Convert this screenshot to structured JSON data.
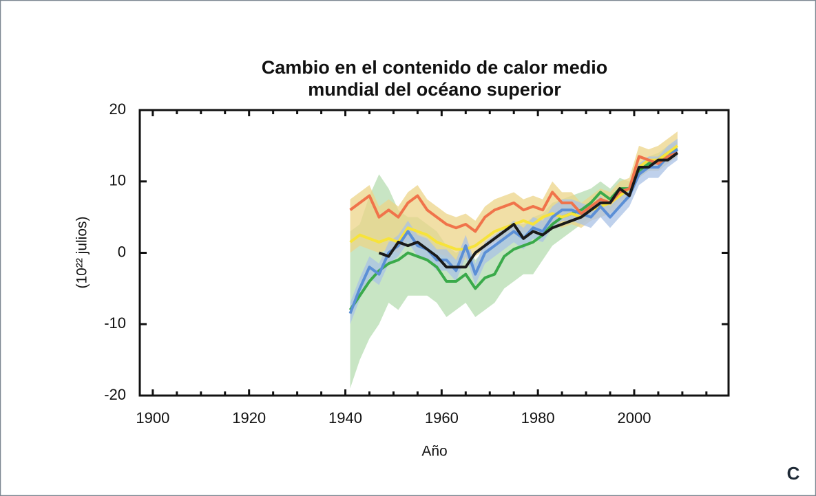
{
  "chart_data": {
    "type": "line",
    "title": [
      "Cambio en el contenido de calor medio",
      "mundial del océano superior"
    ],
    "xlabel": "Año",
    "ylabel": "(10²² julios)",
    "panel_label": "C",
    "xlim": [
      1897.3,
      2019.6
    ],
    "xticks": [
      1900,
      1920,
      1940,
      1960,
      1980,
      2000
    ],
    "xminorticks": [
      1905,
      1910,
      1915,
      1925,
      1930,
      1935,
      1945,
      1950,
      1955,
      1965,
      1970,
      1975,
      1985,
      1990,
      1995,
      2005,
      2010,
      2015
    ],
    "ylim": [
      -20,
      20
    ],
    "yticks": [
      -20,
      -10,
      0,
      10,
      20
    ],
    "x": [
      1941,
      1943,
      1945,
      1947,
      1949,
      1951,
      1953,
      1955,
      1957,
      1959,
      1961,
      1963,
      1965,
      1967,
      1969,
      1971,
      1973,
      1975,
      1977,
      1979,
      1981,
      1983,
      1985,
      1987,
      1989,
      1991,
      1993,
      1995,
      1997,
      1999,
      2001,
      2003,
      2005,
      2007,
      2009
    ],
    "series": [
      {
        "color": "#3aaa4a",
        "band_color": "#b5dcb0",
        "values": [
          -8,
          -6,
          -4,
          -2.5,
          -1.5,
          -1,
          0,
          -0.5,
          -1,
          -2,
          -4,
          -4,
          -3,
          -5,
          -3.5,
          -3,
          -0.5,
          0.5,
          1,
          1.5,
          2.5,
          4,
          5,
          5.5,
          6,
          7,
          8.5,
          7.5,
          9,
          9,
          11.5,
          12.5,
          13,
          14,
          14.5
        ],
        "lower": [
          -19,
          -15,
          -12,
          -10,
          -7,
          -8,
          -6,
          -6,
          -6,
          -7,
          -9,
          -8,
          -7,
          -9,
          -8,
          -7,
          -5,
          -4,
          -3,
          -3,
          -1,
          1,
          2,
          3,
          4,
          5,
          7,
          6,
          7.5,
          8,
          10.5,
          11.5,
          12,
          13,
          13.5
        ],
        "upper": [
          3,
          4,
          8,
          11,
          9,
          6,
          5,
          5,
          4,
          3,
          1,
          0,
          1,
          -1,
          0.5,
          1,
          3,
          4,
          4,
          5,
          5.5,
          7,
          7.5,
          8,
          8.5,
          9,
          10,
          9,
          10.5,
          10,
          12.5,
          13.5,
          14,
          15,
          15.5
        ]
      },
      {
        "color": "#f7e33a",
        "band_color": "#ecd488",
        "values": [
          1.5,
          2.5,
          2,
          1.5,
          2,
          1.5,
          3.5,
          3,
          2.5,
          1.5,
          1,
          0.5,
          0.5,
          1,
          2,
          3,
          3.5,
          4,
          4.5,
          4,
          5,
          5.5,
          5,
          5.5,
          5,
          6,
          6.5,
          7,
          8,
          9,
          12,
          13,
          13,
          14,
          15
        ],
        "lower": [
          0,
          1,
          0.5,
          0,
          0.5,
          0,
          2,
          1.5,
          1,
          0,
          -0.5,
          -1,
          -1,
          -0.5,
          0.5,
          1.5,
          2,
          2.5,
          3,
          2.5,
          3.5,
          4,
          3.5,
          4,
          3.5,
          4.5,
          5,
          5.5,
          6.5,
          7.5,
          10.5,
          11.5,
          11.5,
          12.5,
          13.5
        ],
        "upper": [
          7.5,
          8.5,
          9.5,
          6.5,
          7.5,
          6.5,
          8.5,
          9.5,
          7.5,
          6.5,
          5.5,
          5,
          5.5,
          4.5,
          6.5,
          7.5,
          8,
          8.5,
          7.5,
          8,
          7.5,
          10,
          8.5,
          8.5,
          7,
          8,
          9,
          8.5,
          10,
          10.5,
          15,
          14.5,
          15,
          16,
          17
        ]
      },
      {
        "color": "#5b8fd6",
        "band_color": "#a9c2e6",
        "values": [
          -8.5,
          -5,
          -2,
          -3,
          0,
          1,
          3,
          1,
          0.5,
          -1,
          -1,
          -2.5,
          1,
          -3,
          0,
          1,
          2,
          3,
          2,
          3.5,
          3,
          5,
          6,
          6,
          5.5,
          5,
          6.5,
          5,
          6.5,
          8,
          11,
          12,
          12,
          13.5,
          14.5
        ],
        "lower": [
          -10,
          -6.5,
          -3.5,
          -4.5,
          -1.5,
          -0.5,
          1.5,
          -0.5,
          -1,
          -2.5,
          -2.5,
          -4,
          -0.5,
          -4.5,
          -1.5,
          -0.5,
          0.5,
          1.5,
          0.5,
          2,
          1.5,
          3.5,
          4.5,
          4.5,
          4,
          3.5,
          5,
          3.5,
          5,
          6.5,
          9.5,
          10.5,
          10.5,
          12,
          13
        ],
        "upper": [
          -7,
          -3.5,
          -0.5,
          -1.5,
          1.5,
          2.5,
          4.5,
          2.5,
          2,
          0.5,
          0.5,
          -1,
          2.5,
          -1.5,
          1.5,
          2.5,
          3.5,
          4.5,
          3.5,
          5,
          4.5,
          6.5,
          7.5,
          7.5,
          7,
          6.5,
          8,
          6.5,
          8,
          9.5,
          12.5,
          13.5,
          13.5,
          15,
          16
        ]
      },
      {
        "color": "#f0734a",
        "values": [
          6,
          7,
          8,
          5,
          6,
          5,
          7,
          8,
          6,
          5,
          4,
          3.5,
          4,
          3,
          5,
          6,
          6.5,
          7,
          6,
          6.5,
          6,
          8.5,
          7,
          7,
          5.5,
          6.5,
          7.5,
          7,
          8.5,
          9,
          13.5,
          13,
          12.5,
          13.5,
          14
        ]
      },
      {
        "color": "#1a1a1a",
        "values": [
          null,
          null,
          null,
          0,
          -0.5,
          1.5,
          1,
          1.5,
          0.5,
          -0.5,
          -2,
          -2,
          -2,
          0,
          1,
          2,
          3,
          4,
          2,
          3,
          2.5,
          3.5,
          4,
          4.5,
          5,
          6,
          7,
          7,
          9,
          8,
          12,
          12,
          13,
          13,
          14
        ]
      }
    ]
  }
}
